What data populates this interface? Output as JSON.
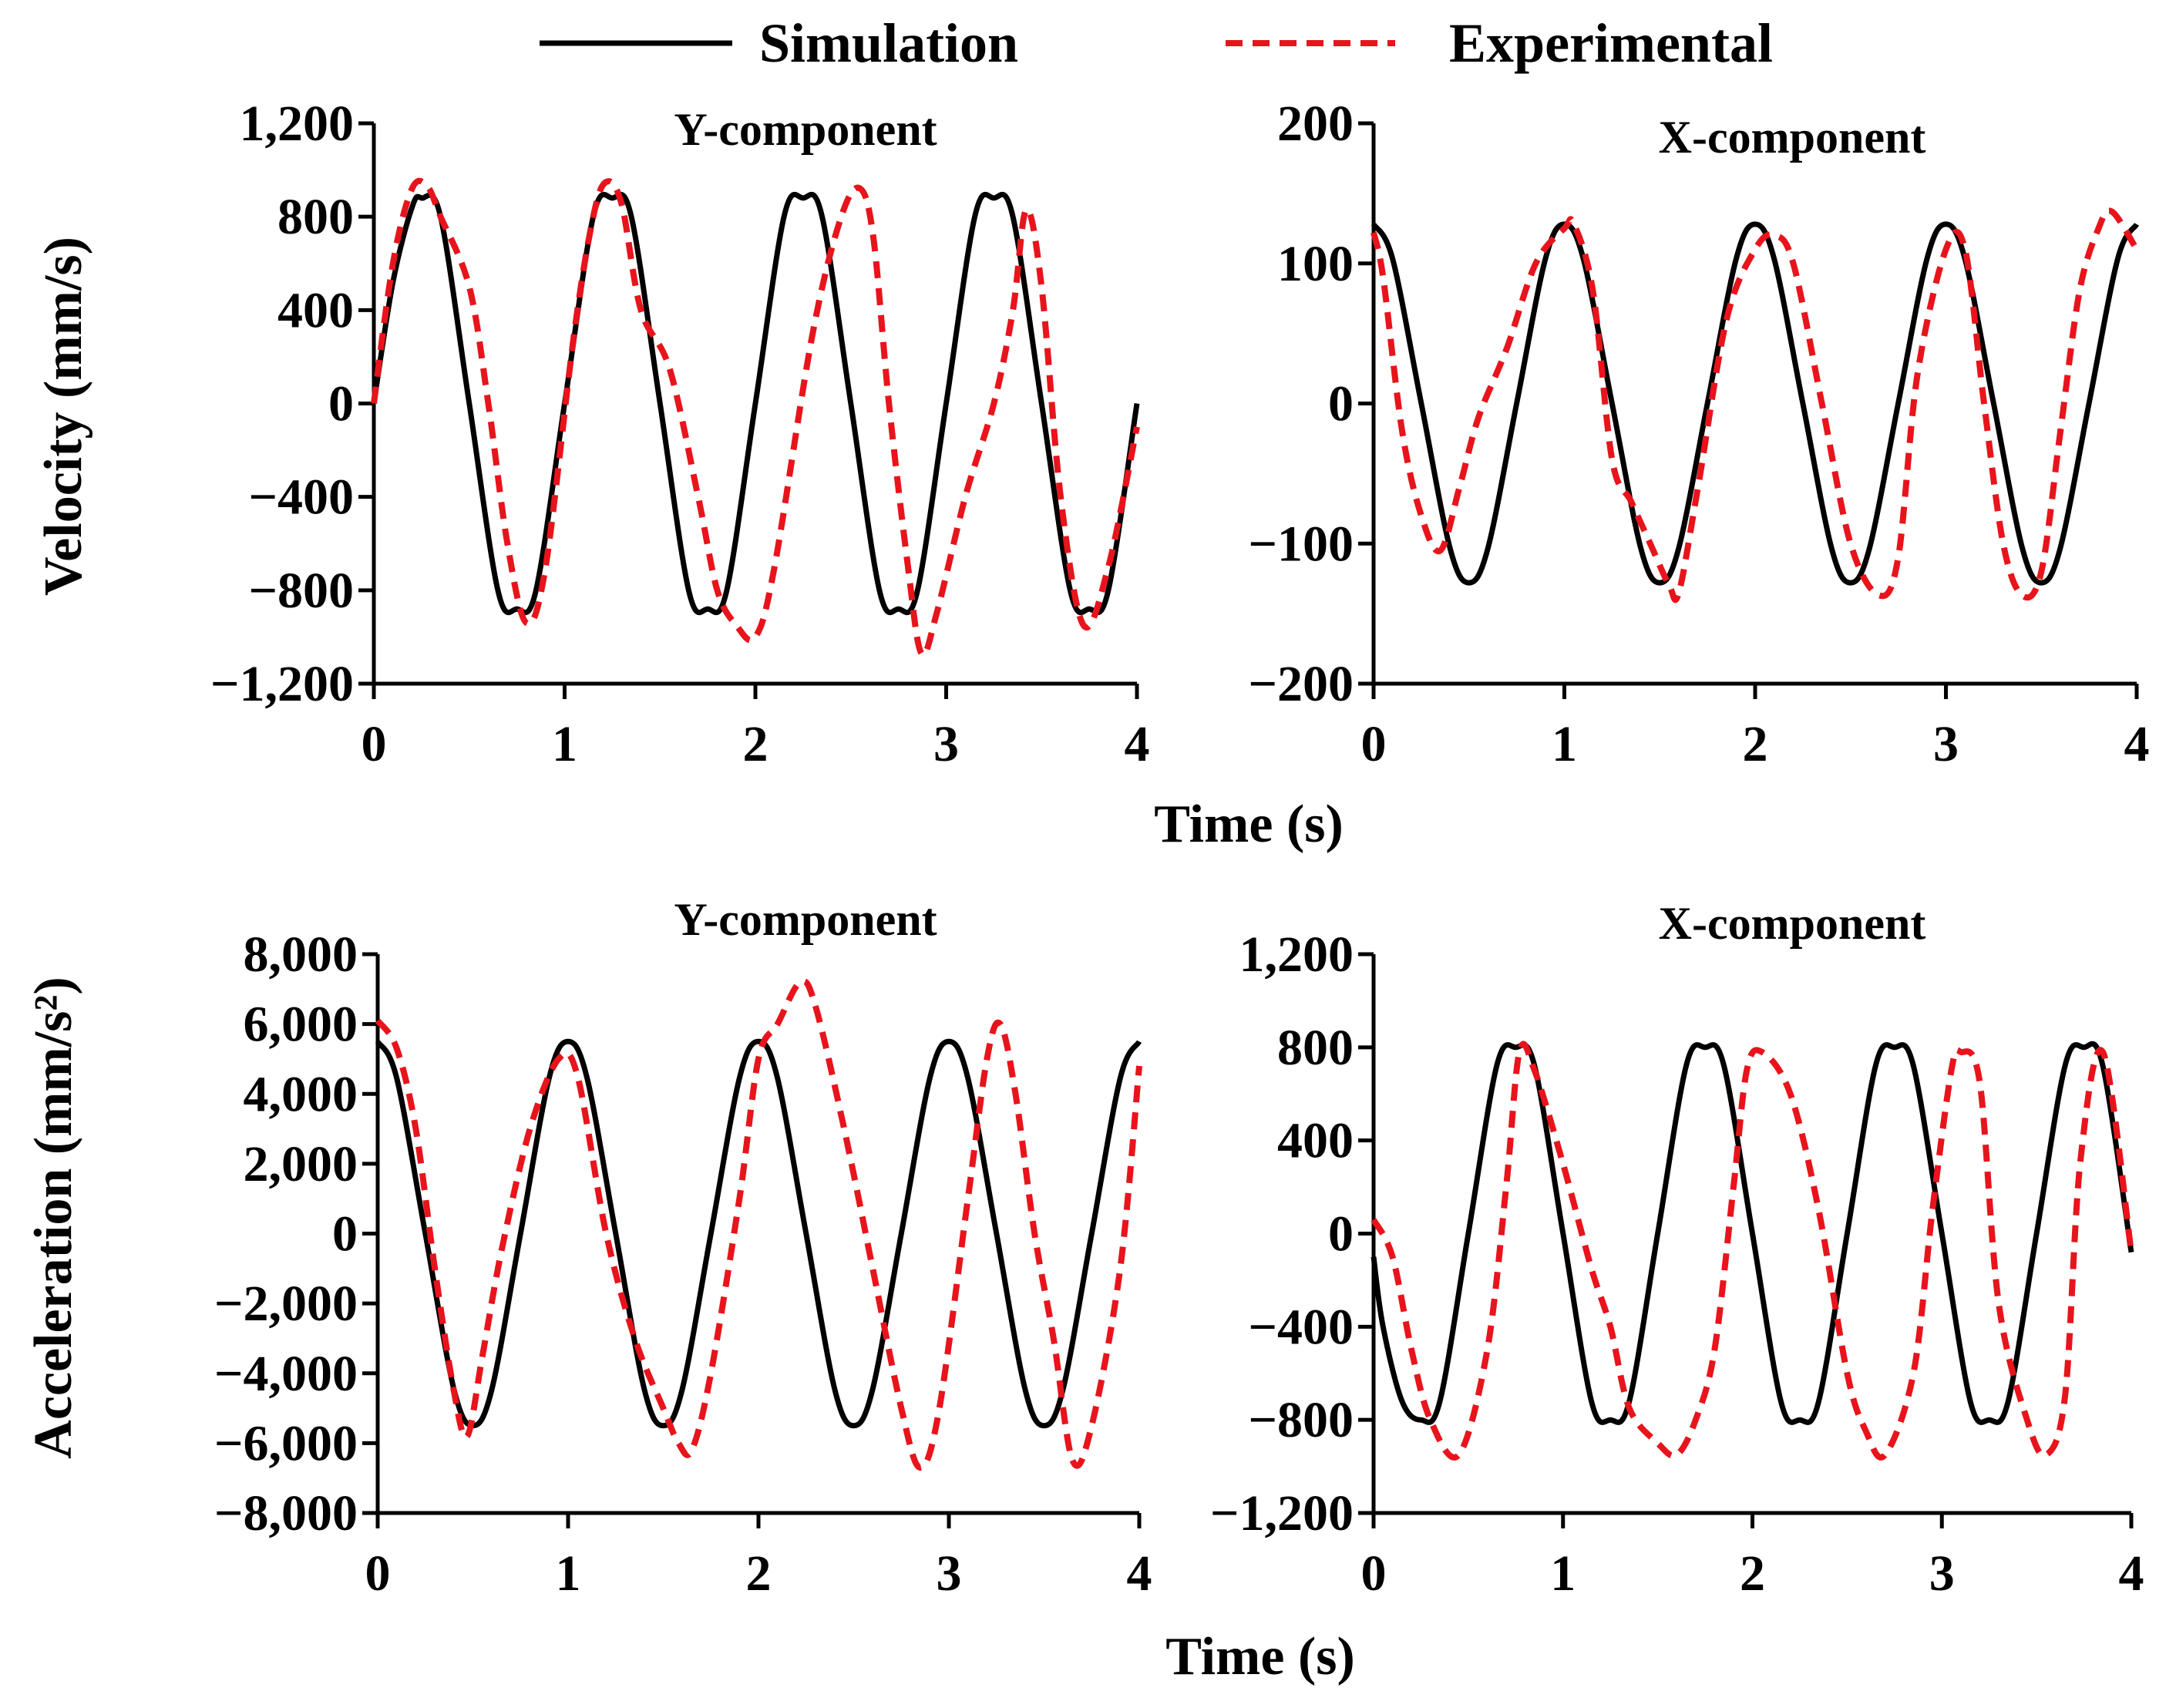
{
  "legend": {
    "simulation_label": "Simulation",
    "experimental_label": "Experimental",
    "simulation_color": "#000000",
    "experimental_color": "#e8141c"
  },
  "xlabel_top": "Time (s)",
  "xlabel_bottom": "Time (s)",
  "chart_data": [
    {
      "id": "vel-y",
      "type": "line",
      "title": "Y-component",
      "ylabel": "Velocity (mm/s)",
      "xlabel": "Time (s)",
      "xlim": [
        0,
        4
      ],
      "ylim": [
        -1200,
        1200
      ],
      "xticks": [
        0,
        1,
        2,
        3,
        4
      ],
      "xtick_labels": [
        "0",
        "1",
        "2",
        "3",
        "4"
      ],
      "yticks": [
        1200,
        800,
        400,
        0,
        -400,
        -800,
        -1200
      ],
      "ytick_labels": [
        "1,200",
        "800",
        "400",
        "0",
        "−400",
        "−800",
        "−1,200"
      ],
      "series": [
        {
          "name": "Simulation",
          "x": [
            0,
            0.1,
            0.2,
            0.25,
            0.35,
            0.5,
            0.65,
            0.75,
            0.85,
            1.0,
            1.15,
            1.25,
            1.35,
            1.5,
            1.65,
            1.75,
            1.85,
            2.0,
            2.15,
            2.25,
            2.35,
            2.5,
            2.65,
            2.75,
            2.85,
            3.0,
            3.15,
            3.25,
            3.35,
            3.5,
            3.65,
            3.75,
            3.85,
            4.0
          ],
          "values": [
            0,
            520,
            840,
            880,
            800,
            0,
            -800,
            -880,
            -800,
            0,
            800,
            880,
            800,
            0,
            -800,
            -880,
            -800,
            0,
            800,
            880,
            800,
            0,
            -800,
            -880,
            -800,
            0,
            800,
            880,
            800,
            0,
            -800,
            -880,
            -800,
            0
          ]
        },
        {
          "name": "Experimental",
          "x": [
            0,
            0.1,
            0.2,
            0.28,
            0.35,
            0.5,
            0.6,
            0.7,
            0.8,
            0.9,
            1.05,
            1.15,
            1.22,
            1.3,
            1.4,
            1.55,
            1.7,
            1.8,
            1.9,
            2.0,
            2.1,
            2.3,
            2.45,
            2.55,
            2.62,
            2.7,
            2.8,
            2.87,
            2.95,
            3.1,
            3.25,
            3.35,
            3.42,
            3.5,
            3.6,
            3.72,
            3.85,
            4.0
          ],
          "values": [
            0,
            600,
            920,
            930,
            800,
            500,
            0,
            -600,
            -940,
            -700,
            300,
            800,
            950,
            850,
            400,
            150,
            -400,
            -800,
            -950,
            -1000,
            -700,
            300,
            800,
            920,
            700,
            0,
            -700,
            -1070,
            -900,
            -400,
            0,
            400,
            830,
            500,
            -400,
            -950,
            -700,
            -100
          ]
        }
      ]
    },
    {
      "id": "vel-x",
      "type": "line",
      "title": "X-component",
      "ylabel": "",
      "xlabel": "Time (s)",
      "xlim": [
        0,
        4
      ],
      "ylim": [
        -200,
        200
      ],
      "xticks": [
        0,
        1,
        2,
        3,
        4
      ],
      "xtick_labels": [
        "0",
        "1",
        "2",
        "3",
        "4"
      ],
      "yticks": [
        200,
        100,
        0,
        -100,
        -200
      ],
      "ytick_labels": [
        "200",
        "100",
        "0",
        "−100",
        "−200"
      ],
      "series": [
        {
          "name": "Simulation",
          "x": [
            0,
            0.1,
            0.25,
            0.4,
            0.5,
            0.6,
            0.75,
            0.9,
            1.0,
            1.1,
            1.25,
            1.4,
            1.5,
            1.6,
            1.75,
            1.9,
            2.0,
            2.1,
            2.25,
            2.4,
            2.5,
            2.6,
            2.75,
            2.9,
            3.0,
            3.1,
            3.25,
            3.4,
            3.5,
            3.6,
            3.75,
            3.9,
            4.0
          ],
          "values": [
            128,
            103,
            0,
            -103,
            -128,
            -103,
            0,
            103,
            128,
            103,
            0,
            -103,
            -128,
            -103,
            0,
            103,
            128,
            103,
            0,
            -103,
            -128,
            -103,
            0,
            103,
            128,
            103,
            0,
            -103,
            -128,
            -103,
            0,
            103,
            128
          ]
        },
        {
          "name": "Experimental",
          "x": [
            0,
            0.05,
            0.15,
            0.25,
            0.35,
            0.45,
            0.55,
            0.7,
            0.85,
            1.0,
            1.05,
            1.15,
            1.25,
            1.35,
            1.45,
            1.55,
            1.6,
            1.7,
            1.85,
            2.0,
            2.1,
            2.2,
            2.35,
            2.5,
            2.65,
            2.75,
            2.85,
            3.0,
            3.1,
            3.2,
            3.3,
            3.4,
            3.5,
            3.6,
            3.7,
            3.8,
            3.87,
            4.0
          ],
          "values": [
            122,
            90,
            -20,
            -80,
            -105,
            -60,
            -10,
            40,
            100,
            125,
            128,
            80,
            -40,
            -70,
            -100,
            -130,
            -135,
            -60,
            60,
            110,
            120,
            100,
            0,
            -100,
            -137,
            -110,
            20,
            110,
            110,
            0,
            -100,
            -137,
            -120,
            -20,
            80,
            125,
            137,
            110
          ]
        }
      ]
    },
    {
      "id": "acc-y",
      "type": "line",
      "title": "Y-component",
      "ylabel": "Acceleration (mm/s²)",
      "xlabel": "Time (s)",
      "xlim": [
        0,
        4
      ],
      "ylim": [
        -8000,
        8000
      ],
      "xticks": [
        0,
        1,
        2,
        3,
        4
      ],
      "xtick_labels": [
        "0",
        "1",
        "2",
        "3",
        "4"
      ],
      "yticks": [
        8000,
        6000,
        4000,
        2000,
        0,
        -2000,
        -4000,
        -6000,
        -8000
      ],
      "ytick_labels": [
        "8,000",
        "6,000",
        "4,000",
        "2,000",
        "0",
        "−2,000",
        "−4,000",
        "−6,000",
        "−8,000"
      ],
      "series": [
        {
          "name": "Simulation",
          "x": [
            0,
            0.1,
            0.25,
            0.4,
            0.5,
            0.6,
            0.75,
            0.9,
            1.0,
            1.1,
            1.25,
            1.4,
            1.5,
            1.6,
            1.75,
            1.9,
            2.0,
            2.1,
            2.25,
            2.4,
            2.5,
            2.6,
            2.75,
            2.9,
            3.0,
            3.1,
            3.25,
            3.4,
            3.5,
            3.6,
            3.75,
            3.9,
            4.0
          ],
          "values": [
            5500,
            4450,
            0,
            -4450,
            -5500,
            -4450,
            0,
            4450,
            5500,
            4450,
            0,
            -4450,
            -5500,
            -4450,
            0,
            4450,
            5500,
            4450,
            0,
            -4450,
            -5500,
            -4450,
            0,
            4450,
            5500,
            4450,
            0,
            -4450,
            -5500,
            -4450,
            0,
            4450,
            5500
          ]
        },
        {
          "name": "Experimental",
          "x": [
            0,
            0.1,
            0.2,
            0.3,
            0.4,
            0.47,
            0.55,
            0.65,
            0.8,
            0.95,
            1.05,
            1.2,
            1.35,
            1.5,
            1.58,
            1.65,
            1.75,
            1.9,
            2.0,
            2.1,
            2.22,
            2.3,
            2.45,
            2.6,
            2.75,
            2.85,
            2.95,
            3.1,
            3.2,
            3.27,
            3.35,
            3.45,
            3.55,
            3.65,
            3.75,
            3.9,
            4.0
          ],
          "values": [
            6100,
            5300,
            3000,
            -1000,
            -4500,
            -5800,
            -3500,
            -500,
            3000,
            5000,
            4500,
            0,
            -3000,
            -5000,
            -6000,
            -6200,
            -4000,
            1000,
            5000,
            6000,
            7200,
            6500,
            3000,
            -1000,
            -5000,
            -6700,
            -5000,
            1000,
            5000,
            6000,
            4000,
            0,
            -3000,
            -6500,
            -5500,
            -1000,
            4800
          ]
        }
      ]
    },
    {
      "id": "acc-x",
      "type": "line",
      "title": "X-component",
      "ylabel": "",
      "xlabel": "Time (s)",
      "xlim": [
        0,
        4
      ],
      "ylim": [
        -1200,
        1200
      ],
      "xticks": [
        0,
        1,
        2,
        3,
        4
      ],
      "xtick_labels": [
        "0",
        "1",
        "2",
        "3",
        "4"
      ],
      "yticks": [
        1200,
        800,
        400,
        0,
        -400,
        -800,
        -1200
      ],
      "ytick_labels": [
        "1,200",
        "800",
        "400",
        "0",
        "−400",
        "−800",
        "−1,200"
      ],
      "series": [
        {
          "name": "Simulation",
          "x": [
            0,
            0.05,
            0.15,
            0.25,
            0.35,
            0.5,
            0.65,
            0.75,
            0.85,
            1.0,
            1.15,
            1.25,
            1.35,
            1.5,
            1.65,
            1.75,
            1.85,
            2.0,
            2.15,
            2.25,
            2.35,
            2.5,
            2.65,
            2.75,
            2.85,
            3.0,
            3.15,
            3.25,
            3.35,
            3.5,
            3.65,
            3.75,
            3.85,
            4.0
          ],
          "values": [
            -100,
            -400,
            -720,
            -800,
            -720,
            0,
            720,
            800,
            720,
            0,
            -720,
            -800,
            -720,
            0,
            720,
            800,
            720,
            0,
            -720,
            -800,
            -720,
            0,
            720,
            800,
            720,
            0,
            -720,
            -800,
            -720,
            0,
            720,
            800,
            720,
            -80
          ]
        },
        {
          "name": "Experimental",
          "x": [
            0,
            0.1,
            0.2,
            0.3,
            0.45,
            0.6,
            0.7,
            0.77,
            0.85,
            1.0,
            1.15,
            1.25,
            1.35,
            1.5,
            1.6,
            1.7,
            1.8,
            1.9,
            1.97,
            2.05,
            2.2,
            2.35,
            2.5,
            2.6,
            2.7,
            2.85,
            2.95,
            3.05,
            3.1,
            3.2,
            3.3,
            3.45,
            3.55,
            3.65,
            3.73,
            3.85,
            4.0
          ],
          "values": [
            60,
            -100,
            -500,
            -800,
            -950,
            -500,
            200,
            780,
            700,
            300,
            -150,
            -400,
            -750,
            -900,
            -950,
            -800,
            -500,
            200,
            700,
            780,
            600,
            100,
            -600,
            -850,
            -950,
            -600,
            100,
            700,
            780,
            650,
            -300,
            -800,
            -950,
            -700,
            300,
            780,
            -80
          ]
        }
      ]
    }
  ]
}
